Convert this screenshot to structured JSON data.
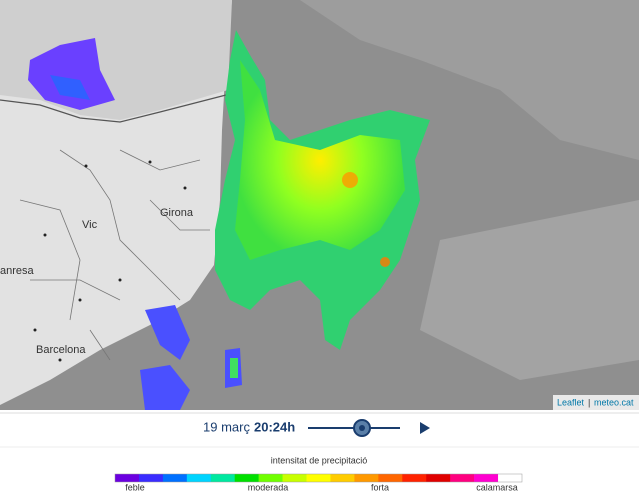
{
  "map": {
    "places": [
      "Vic",
      "Girona",
      "anresa",
      "Barcelona"
    ],
    "attribution": {
      "leaflet": "Leaflet",
      "source": "meteo.cat"
    }
  },
  "controls": {
    "date": "19 març",
    "time": "20:24h"
  },
  "legend": {
    "title": "intensitat de precipitació",
    "labels": [
      "feble",
      "moderada",
      "forta",
      "calamarsa"
    ],
    "colors": [
      "#6b00e0",
      "#3a2cff",
      "#0070ff",
      "#00d4ff",
      "#00e8a0",
      "#00e000",
      "#70ff00",
      "#c8ff00",
      "#ffff00",
      "#ffcc00",
      "#ff9900",
      "#ff6600",
      "#ff2200",
      "#e00000",
      "#ff0080",
      "#ff00d0",
      "#ffffff"
    ]
  }
}
